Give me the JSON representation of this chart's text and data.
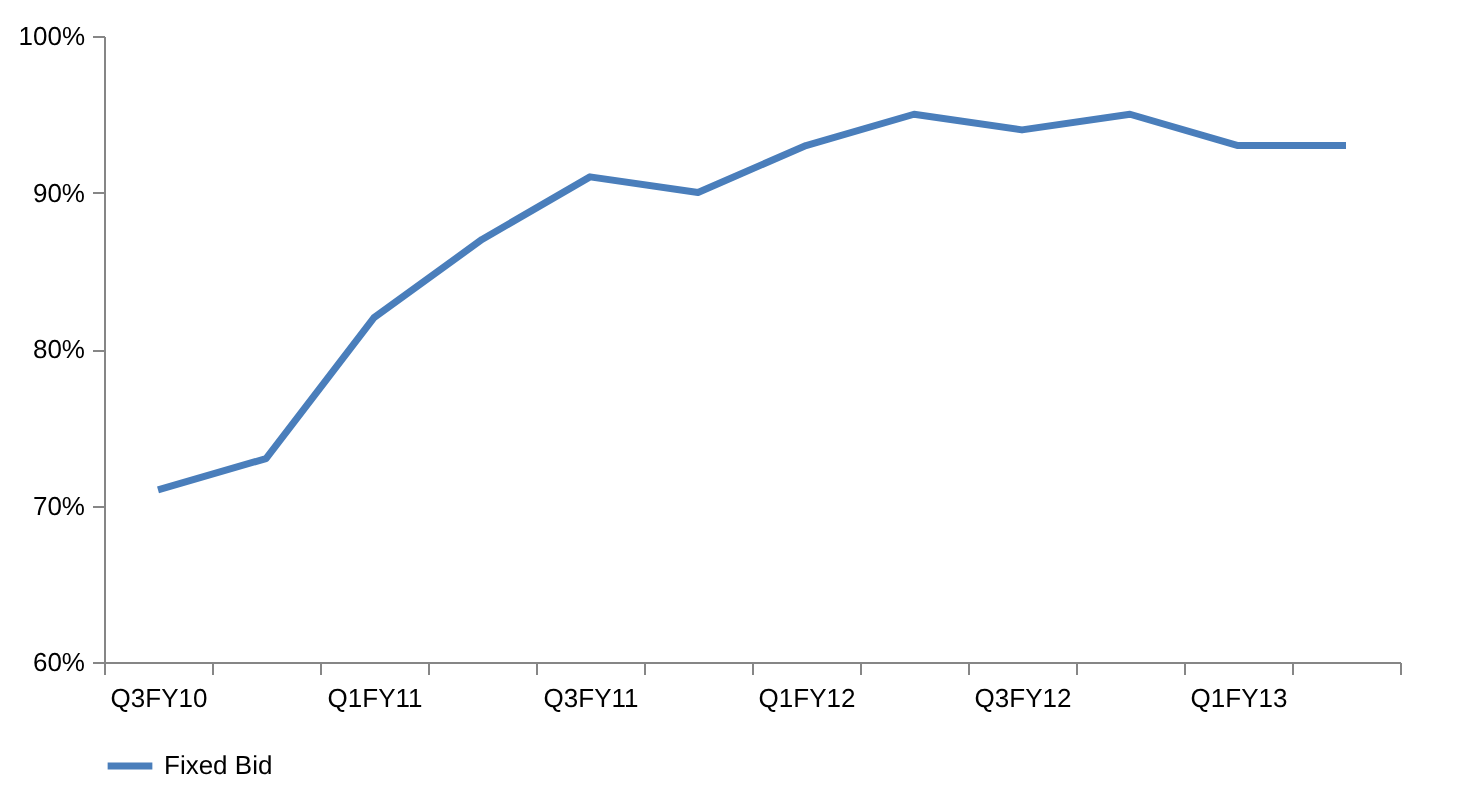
{
  "chart_data": {
    "type": "line",
    "categories": [
      "Q3FY10",
      null,
      "Q1FY11",
      null,
      "Q3FY11",
      null,
      "Q1FY12",
      null,
      "Q3FY12",
      null,
      "Q1FY13",
      null
    ],
    "series": [
      {
        "name": "Fixed Bid",
        "color": "#4a7ebb",
        "values": [
          71,
          73,
          82,
          87,
          91,
          90,
          93,
          95,
          94,
          95,
          93,
          93
        ]
      }
    ],
    "ylim": [
      60,
      100
    ],
    "yticks": [
      {
        "value": 60,
        "label": "60%"
      },
      {
        "value": 70,
        "label": "70%"
      },
      {
        "value": 80,
        "label": "80%"
      },
      {
        "value": 90,
        "label": "90%"
      },
      {
        "value": 100,
        "label": "100%"
      }
    ],
    "grid": false,
    "legend": "bottom",
    "marker": "none"
  }
}
